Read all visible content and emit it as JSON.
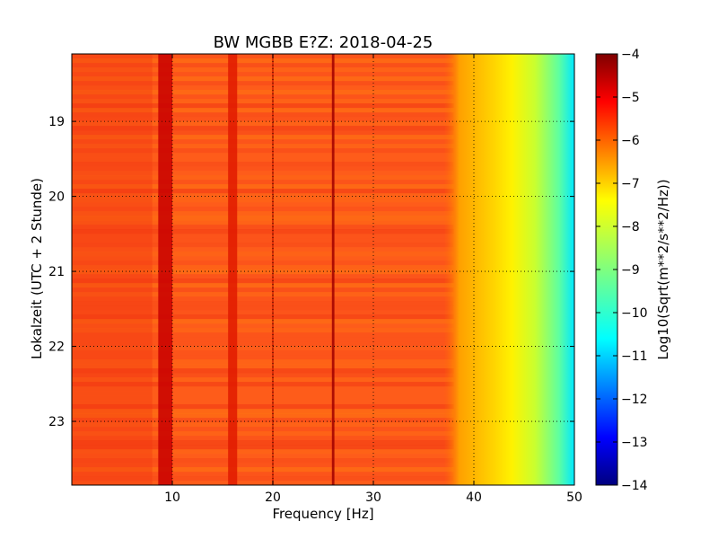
{
  "chart_data": {
    "type": "heatmap",
    "title": "BW MGBB E?Z: 2018-04-25",
    "xlabel": "Frequency [Hz]",
    "ylabel": "Lokalzeit (UTC + 2 Stunde)",
    "xlim": [
      0,
      50
    ],
    "ylim": [
      18.1,
      23.85
    ],
    "x_ticks": [
      10,
      20,
      30,
      40,
      50
    ],
    "y_ticks": [
      19,
      20,
      21,
      22,
      23
    ],
    "grid": true,
    "colorbar": {
      "label": "Log10(Sqrt(m**2/s**2/Hz))",
      "range": [
        -14,
        -4
      ],
      "ticks": [
        -4,
        -5,
        -6,
        -7,
        -8,
        -9,
        -10,
        -11,
        -12,
        -13,
        -14
      ],
      "colormap": "jet",
      "colors": [
        "#00007f",
        "#0000ff",
        "#007fff",
        "#00ffff",
        "#7fff7f",
        "#ffff00",
        "#ff7f00",
        "#ff0000",
        "#7f0000"
      ]
    },
    "description_values": {
      "background_level": -5.9,
      "peak_lines_hz": [
        9.5,
        10,
        16,
        26
      ],
      "rolloff_start_hz": 38,
      "rolloff_end_hz": 50,
      "level_at_50hz": -10.5
    }
  }
}
